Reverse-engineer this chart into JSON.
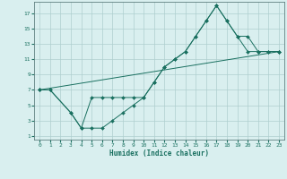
{
  "title": "",
  "xlabel": "Humidex (Indice chaleur)",
  "bg_color": "#d9efef",
  "grid_color": "#aecece",
  "line_color": "#1a7060",
  "xlim": [
    -0.5,
    23.5
  ],
  "ylim": [
    0.5,
    18.5
  ],
  "xticks": [
    0,
    1,
    2,
    3,
    4,
    5,
    6,
    7,
    8,
    9,
    10,
    11,
    12,
    13,
    14,
    15,
    16,
    17,
    18,
    19,
    20,
    21,
    22,
    23
  ],
  "yticks": [
    1,
    3,
    5,
    7,
    9,
    11,
    13,
    15,
    17
  ],
  "line1_x": [
    0,
    1,
    3,
    4,
    5,
    6,
    7,
    8,
    9,
    10,
    11,
    12,
    13,
    14,
    15,
    16,
    17,
    18,
    19,
    20,
    21,
    22,
    23
  ],
  "line1_y": [
    7,
    7,
    4,
    2,
    2,
    2,
    3,
    4,
    5,
    6,
    8,
    10,
    11,
    12,
    14,
    16,
    18,
    16,
    14,
    12,
    12,
    12,
    12
  ],
  "line2_x": [
    0,
    1,
    3,
    4,
    5,
    6,
    7,
    8,
    9,
    10,
    11,
    12,
    13,
    14,
    15,
    16,
    17,
    18,
    19,
    20,
    21,
    22,
    23
  ],
  "line2_y": [
    7,
    7,
    4,
    2,
    6,
    6,
    6,
    6,
    6,
    6,
    8,
    10,
    11,
    12,
    14,
    16,
    18,
    16,
    14,
    14,
    12,
    12,
    12
  ],
  "line3_x": [
    0,
    23
  ],
  "line3_y": [
    7,
    12
  ]
}
